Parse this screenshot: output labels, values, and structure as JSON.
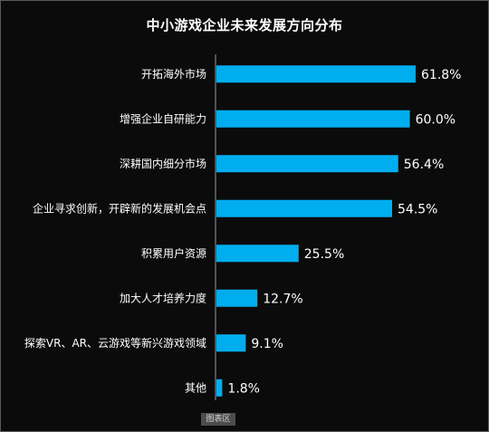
{
  "footer_label": "图表区",
  "chart_data": {
    "type": "bar",
    "orientation": "horizontal",
    "title": "中小游戏企业未来发展方向分布",
    "categories": [
      "开拓海外市场",
      "增强企业自研能力",
      "深耕国内细分市场",
      "企业寻求创新，开辟新的发展机会点",
      "积累用户资源",
      "加大人才培养力度",
      "探索VR、AR、云游戏等新兴游戏领域",
      "其他"
    ],
    "values": [
      61.8,
      60.0,
      56.4,
      54.5,
      25.5,
      12.7,
      9.1,
      1.8
    ],
    "value_labels": [
      "61.8%",
      "60.0%",
      "56.4%",
      "54.5%",
      "25.5%",
      "12.7%",
      "9.1%",
      "1.8%"
    ],
    "xlim": [
      0,
      100
    ],
    "grid": false,
    "bar_color": "#00aeef",
    "axis_color": "#9a9a9a"
  }
}
